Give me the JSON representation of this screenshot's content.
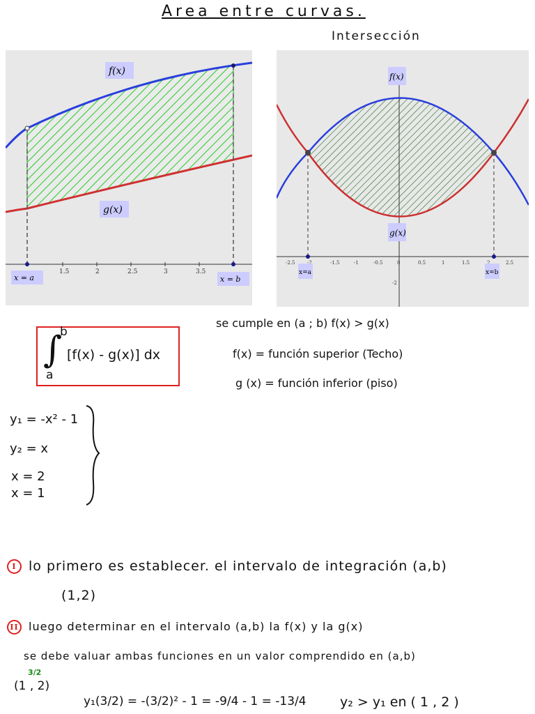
{
  "title": "Area entre curvas.",
  "subtitle": "Intersección",
  "graph_left": {
    "f_label": "f(x)",
    "g_label": "g(x)",
    "xa_label": "x = a",
    "xb_label": "x = b",
    "ticks": [
      "1.5",
      "2",
      "2.5",
      "3",
      "3.5"
    ]
  },
  "graph_right": {
    "f_label": "f(x)",
    "g_label": "g(x)",
    "xa_label": "x=a",
    "xb_label": "x=b",
    "ticks": [
      "-2.5",
      "-2",
      "-1.5",
      "-1",
      "-0.5",
      "0",
      "0.5",
      "1",
      "1.5",
      "2",
      "2.5"
    ],
    "y_tick": "-2"
  },
  "integral": {
    "lower": "a",
    "upper": "b",
    "integrand": "[f(x) - g(x)] dx"
  },
  "notes": {
    "line1": "se cumple en (a ; b)   f(x) > g(x)",
    "line2": "f(x) = función superior (Techo)",
    "line3": "g (x) = función inferior  (piso)"
  },
  "system": {
    "eq1": "y₁ = -x² - 1",
    "eq2": "y₂ =  x",
    "eq3": "x = 2",
    "eq4": "x = 1"
  },
  "steps": {
    "step1_marker": "I",
    "step1": "lo primero es establecer. el intervalo de integración (a,b)",
    "step1_interval": "(1,2)",
    "step2_marker": "II",
    "step2": "luego determinar en el intervalo (a,b)  la f(x) y la g(x)",
    "step2_sub": "se debe valuar ambas funciones en un valor comprendido en (a,b)",
    "point_label": "(1 , 2)",
    "point_fraction": "3/2",
    "eval_line": "y₁(3/2) = -(3/2)² - 1  = -9/4 - 1 = -13/4",
    "conclusion": "y₂ > y₁  en ( 1 , 2 )"
  }
}
